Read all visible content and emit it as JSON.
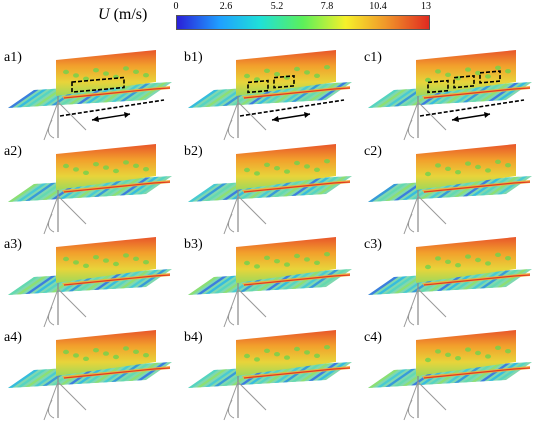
{
  "colorbar": {
    "symbol": "U",
    "unit": "(m/s)",
    "ticks": [
      "0",
      "2.6",
      "5.2",
      "7.8",
      "10.4",
      "13"
    ],
    "colors": [
      "#2a1fd8",
      "#1fa0ff",
      "#1fe0d8",
      "#5cf05a",
      "#f6f02a",
      "#f0962a",
      "#e02a20"
    ]
  },
  "panels": [
    {
      "label": "a1)",
      "boxes": 1
    },
    {
      "label": "b1)",
      "boxes": 2
    },
    {
      "label": "c1)",
      "boxes": 3
    },
    {
      "label": "a2)",
      "boxes": 0
    },
    {
      "label": "b2)",
      "boxes": 0
    },
    {
      "label": "c2)",
      "boxes": 0
    },
    {
      "label": "a3)",
      "boxes": 0
    },
    {
      "label": "b3)",
      "boxes": 0
    },
    {
      "label": "c3)",
      "boxes": 0
    },
    {
      "label": "a4)",
      "boxes": 0
    },
    {
      "label": "b4)",
      "boxes": 0
    },
    {
      "label": "c4)",
      "boxes": 0
    }
  ]
}
